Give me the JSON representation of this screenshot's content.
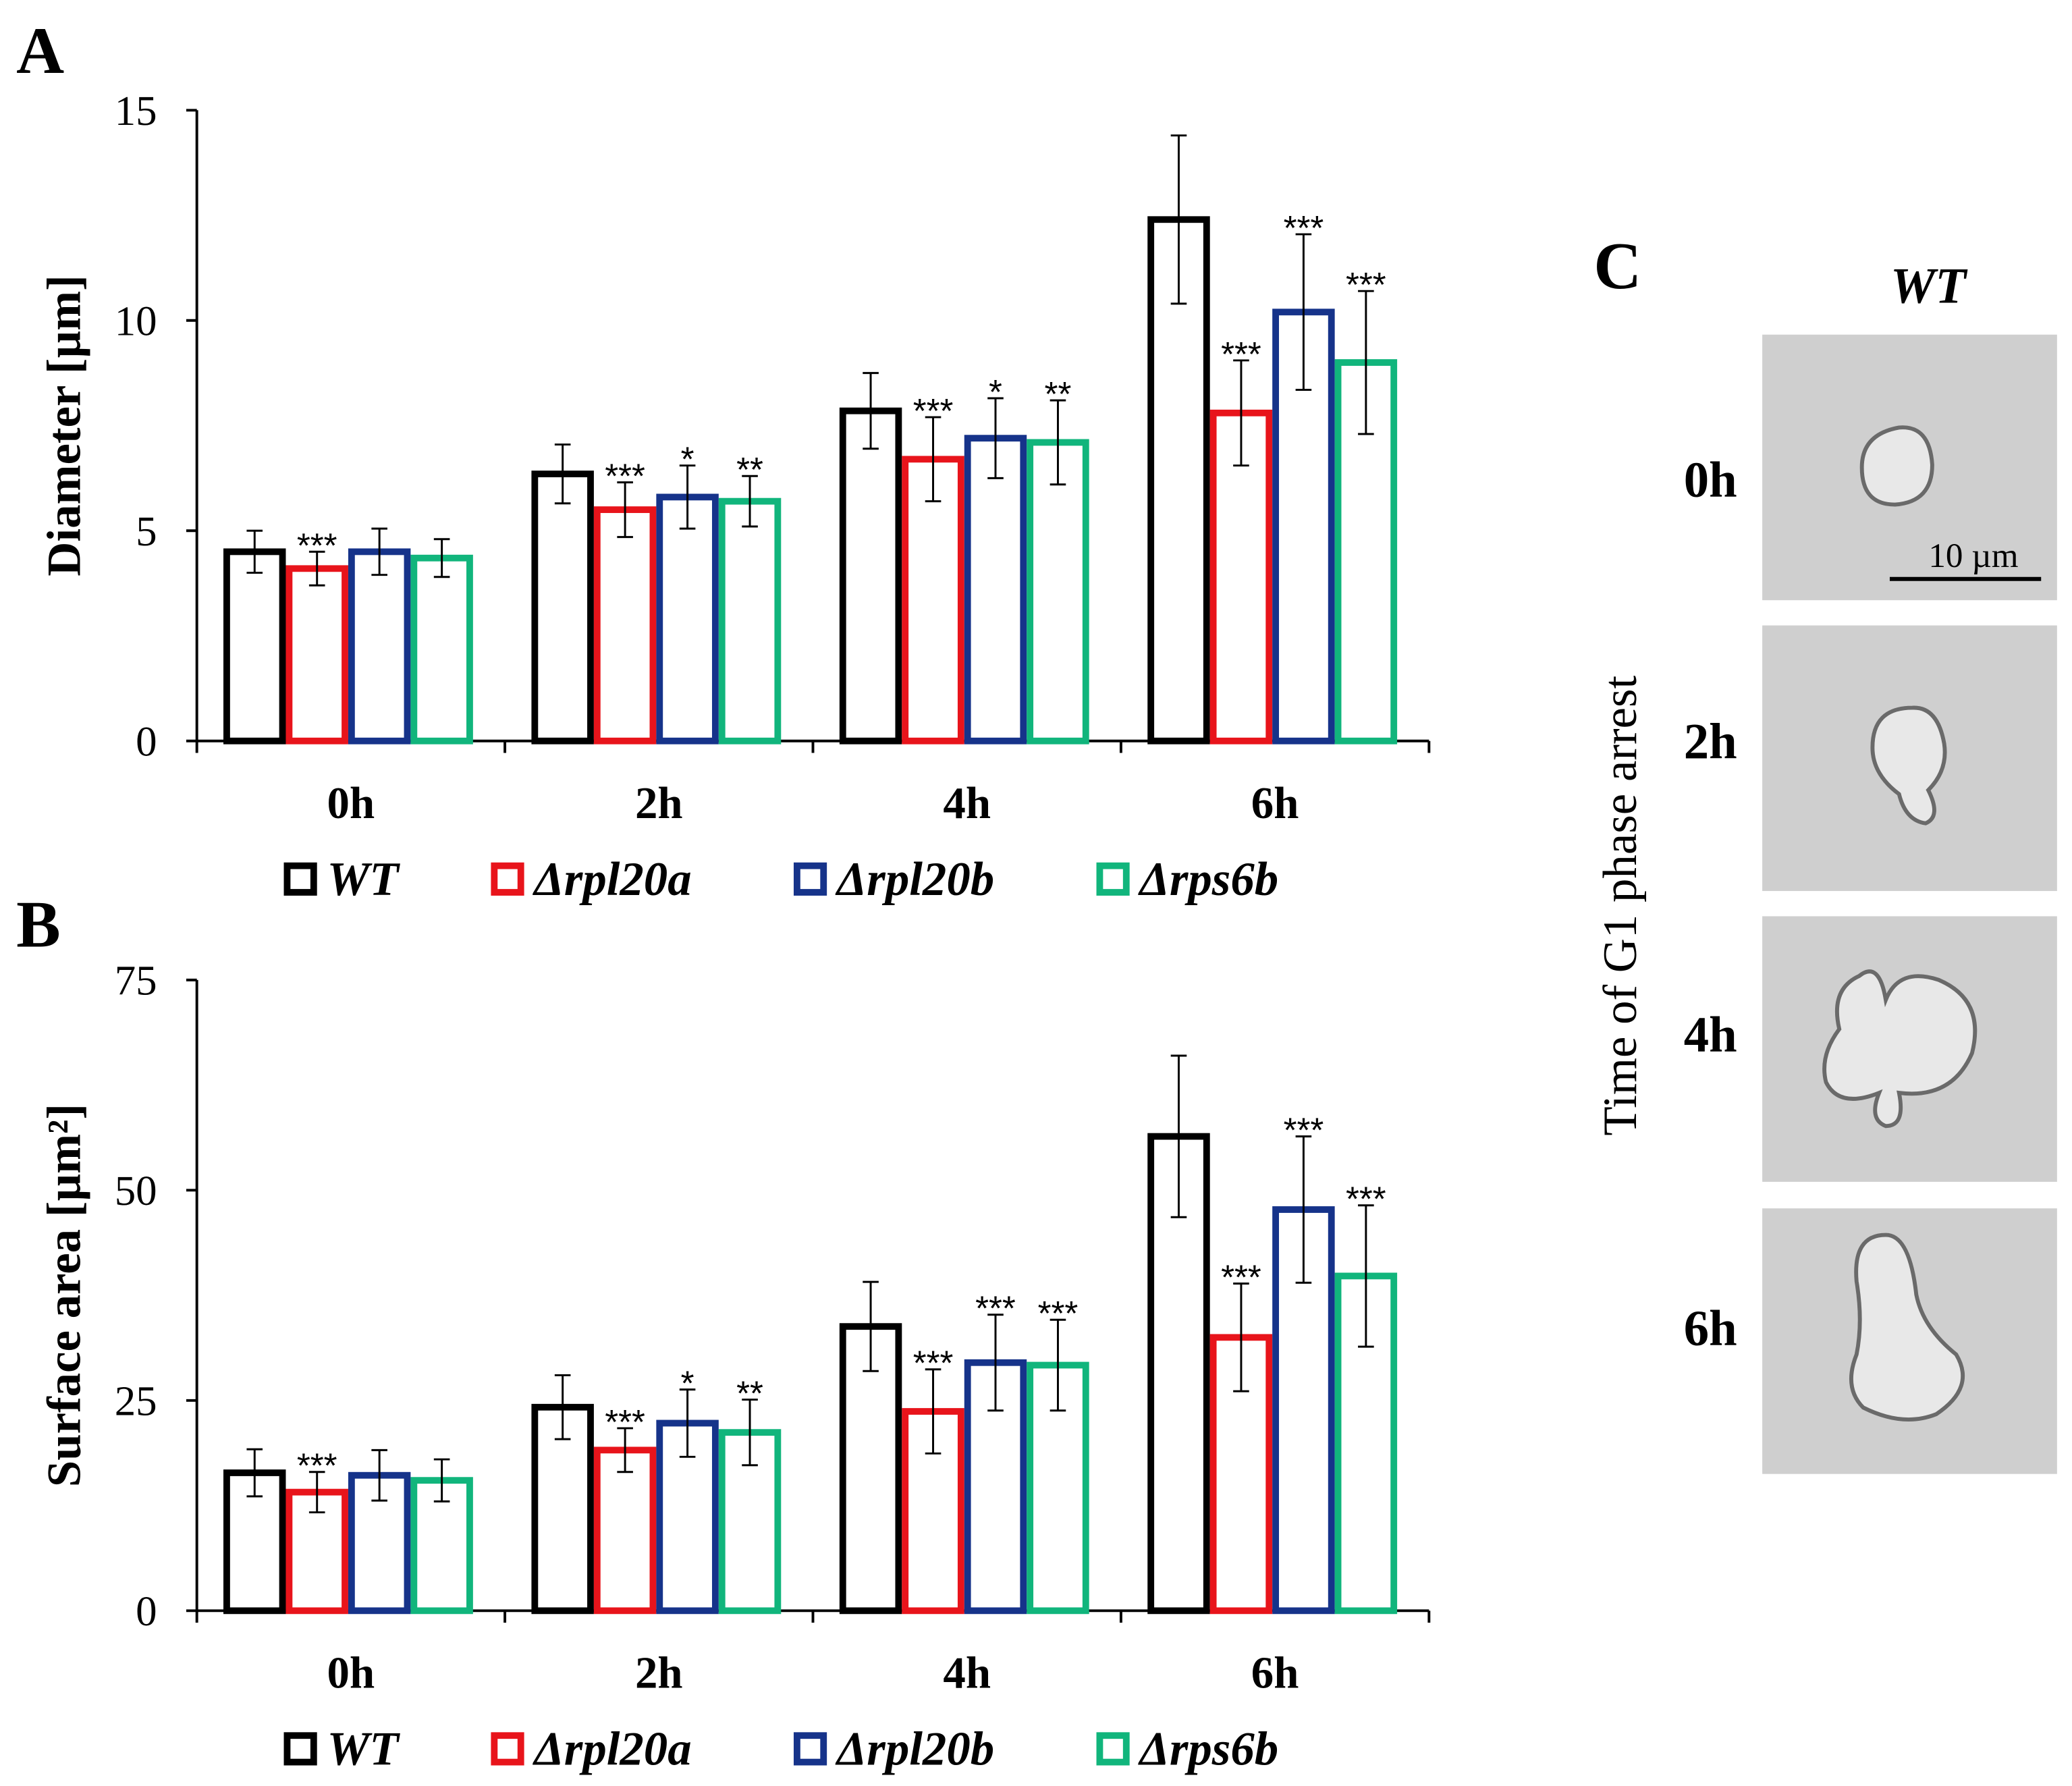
{
  "colors": {
    "WT": "#000000",
    "rpl20a": "#e8141b",
    "rpl20b": "#16338a",
    "rps6b": "#11b57c"
  },
  "panel_c": {
    "label": "C",
    "title": "WT",
    "ylabel": "Time of G1 phase arrest",
    "rows": [
      "0h",
      "2h",
      "4h",
      "6h"
    ],
    "scale_bar": "10 µm"
  },
  "chart_data": [
    {
      "panel": "A",
      "type": "bar",
      "ylabel": "Diameter [µm]",
      "ylim": [
        0,
        15
      ],
      "yticks": [
        0,
        5,
        10,
        15
      ],
      "categories": [
        "0h",
        "2h",
        "4h",
        "6h"
      ],
      "legend": [
        "WT",
        "Δrpl20a",
        "Δrpl20b",
        "Δrps6b"
      ],
      "legend_position": "bottom",
      "series": [
        {
          "name": "WT",
          "values": [
            4.5,
            6.35,
            7.85,
            12.4
          ],
          "errors": [
            0.5,
            0.7,
            0.9,
            2.0
          ],
          "stars": [
            "",
            "",
            "",
            ""
          ]
        },
        {
          "name": "Δrpl20a",
          "values": [
            4.1,
            5.5,
            6.7,
            7.8
          ],
          "errors": [
            0.4,
            0.65,
            1.0,
            1.25
          ],
          "stars": [
            "***",
            "***",
            "***",
            "***"
          ]
        },
        {
          "name": "Δrpl20b",
          "values": [
            4.5,
            5.8,
            7.2,
            10.2
          ],
          "errors": [
            0.55,
            0.75,
            0.95,
            1.85
          ],
          "stars": [
            "",
            "*",
            "*",
            "***"
          ]
        },
        {
          "name": "Δrps6b",
          "values": [
            4.35,
            5.7,
            7.1,
            9.0
          ],
          "errors": [
            0.45,
            0.6,
            1.0,
            1.7
          ],
          "stars": [
            "",
            "**",
            "**",
            "***"
          ]
        }
      ]
    },
    {
      "panel": "B",
      "type": "bar",
      "ylabel": "Surface area [µm²]",
      "ylim": [
        0,
        75
      ],
      "yticks": [
        0,
        25,
        50,
        75
      ],
      "categories": [
        "0h",
        "2h",
        "4h",
        "6h"
      ],
      "legend": [
        "WT",
        "Δrpl20a",
        "Δrpl20b",
        "Δrps6b"
      ],
      "legend_position": "bottom",
      "series": [
        {
          "name": "WT",
          "values": [
            16.4,
            24.2,
            33.8,
            56.4
          ],
          "errors": [
            2.8,
            3.8,
            5.3,
            9.6
          ],
          "stars": [
            "",
            "",
            "",
            ""
          ]
        },
        {
          "name": "Δrpl20a",
          "values": [
            14.1,
            19.1,
            23.7,
            32.5
          ],
          "errors": [
            2.4,
            2.6,
            5.0,
            6.4
          ],
          "stars": [
            "***",
            "***",
            "***",
            "***"
          ]
        },
        {
          "name": "Δrpl20b",
          "values": [
            16.1,
            22.3,
            29.5,
            47.7
          ],
          "errors": [
            3.0,
            4.0,
            5.7,
            8.7
          ],
          "stars": [
            "",
            "*",
            "***",
            "***"
          ]
        },
        {
          "name": "Δrps6b",
          "values": [
            15.5,
            21.2,
            29.2,
            39.8
          ],
          "errors": [
            2.5,
            3.9,
            5.4,
            8.4
          ],
          "stars": [
            "",
            "**",
            "***",
            "***"
          ]
        }
      ]
    }
  ]
}
